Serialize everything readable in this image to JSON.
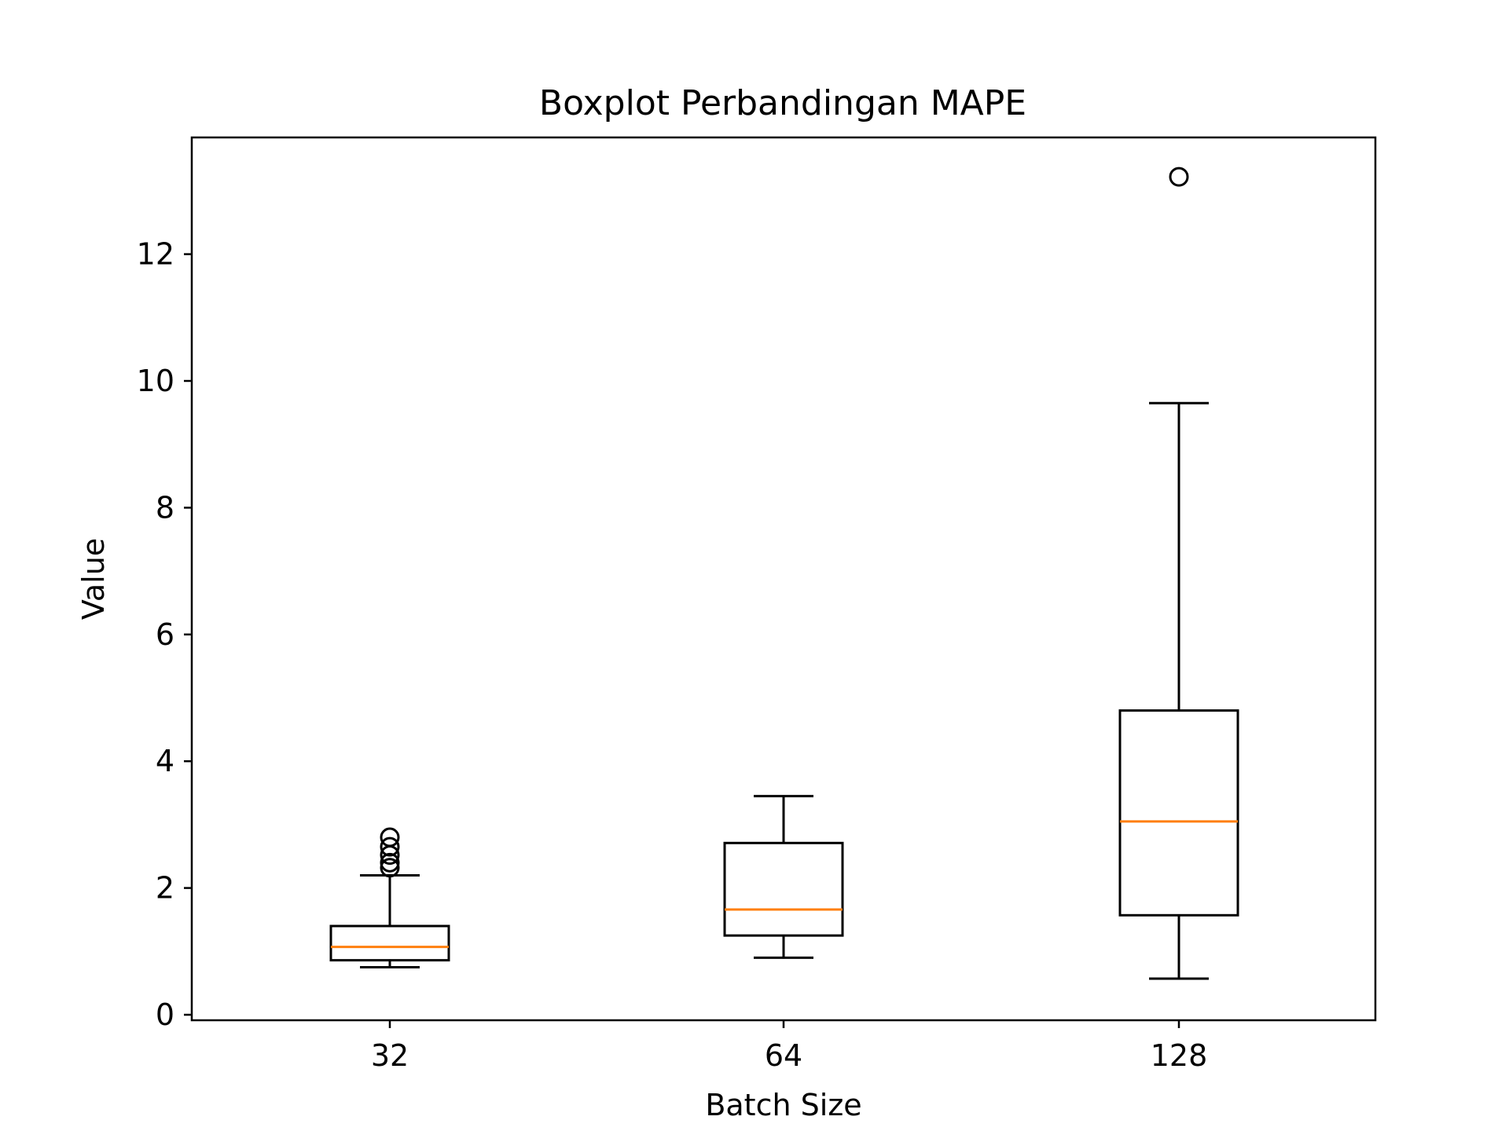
{
  "chart_data": {
    "type": "boxplot",
    "title": "Boxplot Perbandingan MAPE",
    "xlabel": "Batch Size",
    "ylabel": "Value",
    "categories": [
      "32",
      "64",
      "128"
    ],
    "ylim": [
      -0.3,
      13.85
    ],
    "yticks": [
      0,
      2,
      4,
      6,
      8,
      10,
      12
    ],
    "ytick_labels": [
      "0",
      "2",
      "4",
      "6",
      "8",
      "10",
      "12"
    ],
    "grid": false,
    "median_color": "#ff7f0e",
    "box_color": "#000000",
    "boxes": [
      {
        "category": "32",
        "whisker_low": 0.75,
        "q1": 0.86,
        "median": 1.07,
        "q3": 1.4,
        "whisker_high": 2.2,
        "outliers": [
          2.32,
          2.4,
          2.52,
          2.65,
          2.8
        ]
      },
      {
        "category": "64",
        "whisker_low": 0.9,
        "q1": 1.25,
        "median": 1.66,
        "q3": 2.71,
        "whisker_high": 3.45,
        "outliers": []
      },
      {
        "category": "128",
        "whisker_low": 0.57,
        "q1": 1.57,
        "median": 3.05,
        "q3": 4.8,
        "whisker_high": 9.65,
        "outliers": [
          13.22
        ]
      }
    ]
  }
}
